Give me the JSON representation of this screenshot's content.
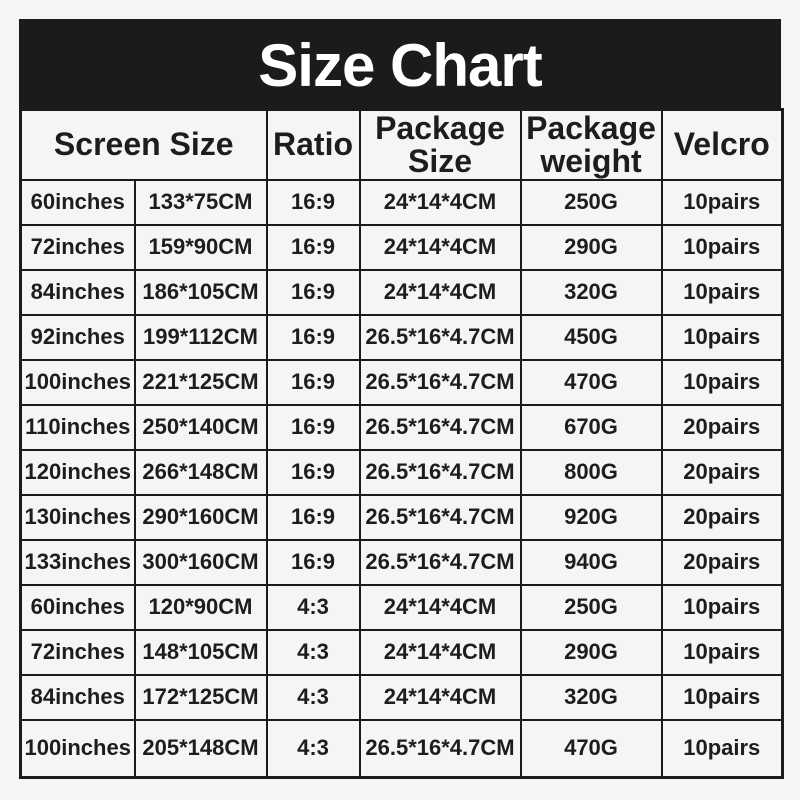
{
  "page": {
    "title": "Size Chart"
  },
  "colors": {
    "title_bar_bg": "#1b1b1d",
    "title_text": "#ffffff",
    "page_background": "#f5f5f6",
    "cell_background": "#f5f5f6",
    "border": "#1b1b1d",
    "body_text": "#1d1d1f"
  },
  "chart_data": {
    "type": "table",
    "title": "Size Chart",
    "headers": [
      "Screen Size",
      "Ratio",
      "Package Size",
      "Package weight",
      "Velcro"
    ],
    "layout_hints": {
      "screen_size_header_colspan": 2,
      "title_bar": "black banner above header row",
      "grid": "all cells bordered black"
    },
    "rows": [
      [
        "60inches",
        "133*75CM",
        "16:9",
        "24*14*4CM",
        "250G",
        "10pairs"
      ],
      [
        "72inches",
        "159*90CM",
        "16:9",
        "24*14*4CM",
        "290G",
        "10pairs"
      ],
      [
        "84inches",
        "186*105CM",
        "16:9",
        "24*14*4CM",
        "320G",
        "10pairs"
      ],
      [
        "92inches",
        "199*112CM",
        "16:9",
        "26.5*16*4.7CM",
        "450G",
        "10pairs"
      ],
      [
        "100inches",
        "221*125CM",
        "16:9",
        "26.5*16*4.7CM",
        "470G",
        "10pairs"
      ],
      [
        "110inches",
        "250*140CM",
        "16:9",
        "26.5*16*4.7CM",
        "670G",
        "20pairs"
      ],
      [
        "120inches",
        "266*148CM",
        "16:9",
        "26.5*16*4.7CM",
        "800G",
        "20pairs"
      ],
      [
        "130inches",
        "290*160CM",
        "16:9",
        "26.5*16*4.7CM",
        "920G",
        "20pairs"
      ],
      [
        "133inches",
        "300*160CM",
        "16:9",
        "26.5*16*4.7CM",
        "940G",
        "20pairs"
      ],
      [
        "60inches",
        "120*90CM",
        "4:3",
        "24*14*4CM",
        "250G",
        "10pairs"
      ],
      [
        "72inches",
        "148*105CM",
        "4:3",
        "24*14*4CM",
        "290G",
        "10pairs"
      ],
      [
        "84inches",
        "172*125CM",
        "4:3",
        "24*14*4CM",
        "320G",
        "10pairs"
      ],
      [
        "100inches",
        "205*148CM",
        "4:3",
        "26.5*16*4.7CM",
        "470G",
        "10pairs"
      ]
    ]
  }
}
